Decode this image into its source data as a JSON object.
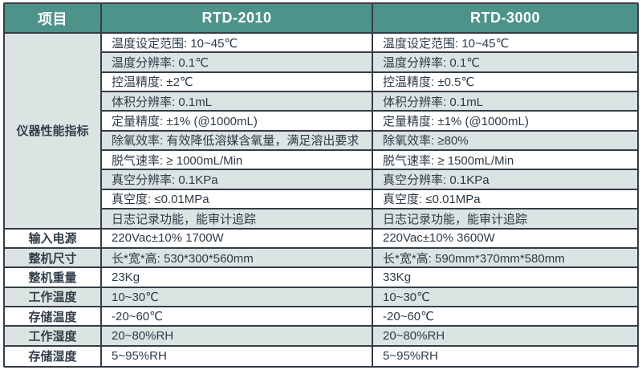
{
  "table": {
    "header": {
      "col_item": "项目",
      "col_model1": "RTD-2010",
      "col_model2": "RTD-3000"
    },
    "performance_group_label": "仪器性能指标",
    "performance_rows": [
      {
        "rtd2010": "温度设定范围: 10~45℃",
        "rtd3000": "温度设定范围: 10~45℃"
      },
      {
        "rtd2010": "温度分辨率: 0.1℃",
        "rtd3000": "温度分辨率: 0.1℃"
      },
      {
        "rtd2010": "控温精度: ±2℃",
        "rtd3000": "控温精度: ±0.5℃"
      },
      {
        "rtd2010": "体积分辨率: 0.1mL",
        "rtd3000": "体积分辨率: 0.1mL"
      },
      {
        "rtd2010": "定量精度: ±1% (@1000mL)",
        "rtd3000": "定量精度: ±1% (@1000mL)"
      },
      {
        "rtd2010": "除氧效率: 有效降低溶媒含氧量，满足溶出要求",
        "rtd3000": "除氧效率: ≥80%"
      },
      {
        "rtd2010": "脱气速率: ≥ 1000mL/Min",
        "rtd3000": "脱气速率: ≥ 1500mL/Min"
      },
      {
        "rtd2010": "真空分辨率: 0.1KPa",
        "rtd3000": "真空分辨率: 0.1KPa"
      },
      {
        "rtd2010": "真空度: ≤0.01MPa",
        "rtd3000": "真空度: ≤0.01MPa"
      },
      {
        "rtd2010": "日志记录功能，能审计追踪",
        "rtd3000": "日志记录功能，能审计追踪"
      }
    ],
    "spec_rows": [
      {
        "label": "输入电源",
        "rtd2010": "220Vac±10% 1700W",
        "rtd3000": "220Vac±10% 3600W"
      },
      {
        "label": "整机尺寸",
        "rtd2010": "长*宽*高: 530*300*560mm",
        "rtd3000": "长*宽*高: 590mm*370mm*580mm"
      },
      {
        "label": "整机重量",
        "rtd2010": "23Kg",
        "rtd3000": "33Kg"
      },
      {
        "label": "工作温度",
        "rtd2010": "10~30℃",
        "rtd3000": "10~30℃"
      },
      {
        "label": "存储温度",
        "rtd2010": "-20~60℃",
        "rtd3000": "-20~60℃"
      },
      {
        "label": "工作湿度",
        "rtd2010": "20~80%RH",
        "rtd3000": "20~80%RH"
      },
      {
        "label": "存储湿度",
        "rtd2010": "5~95%RH",
        "rtd3000": "5~95%RH"
      }
    ],
    "colors": {
      "header_bg": "#4e938a",
      "header_text": "#ffffff",
      "row_bg": "#ffffff",
      "row_alt_bg": "#dce4e3",
      "border": "#333d44",
      "text": "#2d3a45"
    }
  }
}
